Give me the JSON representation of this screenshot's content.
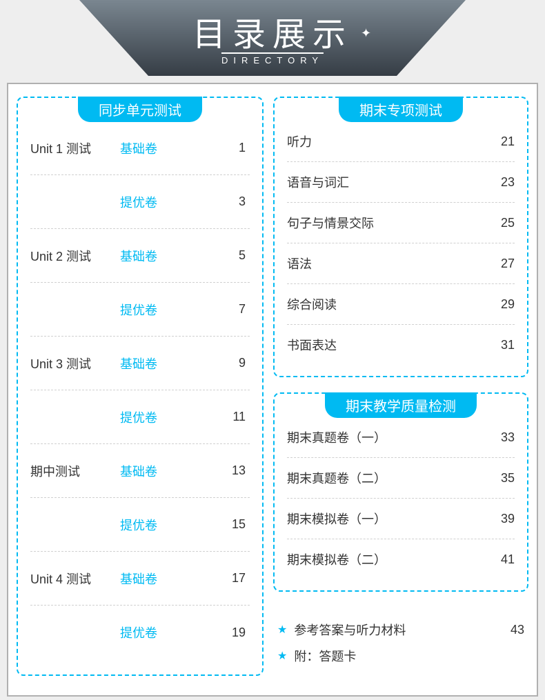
{
  "header": {
    "title": "目录展示",
    "subtitle": "DIRECTORY",
    "bg_gradient_top": "#6a7680",
    "bg_gradient_bottom": "#3a4450",
    "text_color": "#ffffff"
  },
  "colors": {
    "accent": "#00baf2",
    "outer_border": "#b0b0b0",
    "page_bg": "#eeeeee",
    "panel_bg": "#ffffff",
    "text": "#333333",
    "divider": "#d0d0d0"
  },
  "left_panel": {
    "title": "同步单元测试",
    "rows": [
      {
        "unit": "Unit 1 测试",
        "type": "基础卷",
        "page": "1"
      },
      {
        "unit": "",
        "type": "提优卷",
        "page": "3"
      },
      {
        "unit": "Unit 2 测试",
        "type": "基础卷",
        "page": "5"
      },
      {
        "unit": "",
        "type": "提优卷",
        "page": "7"
      },
      {
        "unit": "Unit 3 测试",
        "type": "基础卷",
        "page": "9"
      },
      {
        "unit": "",
        "type": "提优卷",
        "page": "11"
      },
      {
        "unit": "期中测试",
        "type": "基础卷",
        "page": "13"
      },
      {
        "unit": "",
        "type": "提优卷",
        "page": "15"
      },
      {
        "unit": "Unit 4 测试",
        "type": "基础卷",
        "page": "17"
      },
      {
        "unit": "",
        "type": "提优卷",
        "page": "19"
      }
    ]
  },
  "right_panel_1": {
    "title": "期末专项测试",
    "rows": [
      {
        "label": "听力",
        "page": "21"
      },
      {
        "label": "语音与词汇",
        "page": "23"
      },
      {
        "label": "句子与情景交际",
        "page": "25"
      },
      {
        "label": "语法",
        "page": "27"
      },
      {
        "label": "综合阅读",
        "page": "29"
      },
      {
        "label": "书面表达",
        "page": "31"
      }
    ]
  },
  "right_panel_2": {
    "title": "期末教学质量检测",
    "rows": [
      {
        "label": "期末真题卷（一）",
        "page": "33"
      },
      {
        "label": "期末真题卷（二）",
        "page": "35"
      },
      {
        "label": "期末模拟卷（一）",
        "page": "39"
      },
      {
        "label": "期末模拟卷（二）",
        "page": "41"
      }
    ]
  },
  "appendix": [
    {
      "label": "参考答案与听力材料",
      "page": "43"
    },
    {
      "label": "附：答题卡",
      "page": ""
    }
  ]
}
